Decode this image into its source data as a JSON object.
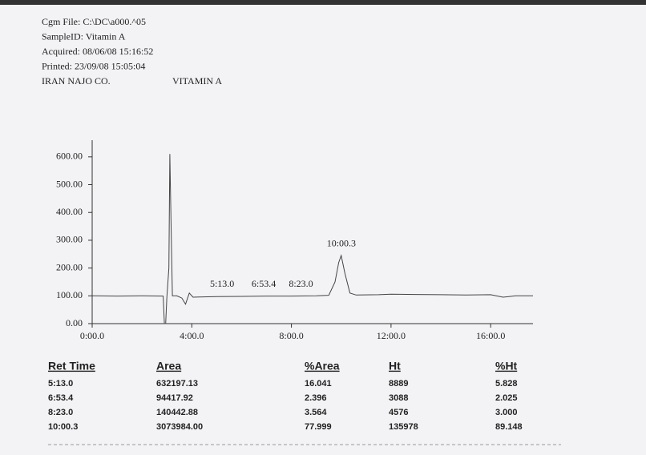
{
  "header": {
    "lines": [
      "Cgm File: C:\\DC\\a000.^05",
      "SampleID: Vitamin A",
      "Acquired: 08/06/08 15:16:52",
      "Printed: 23/09/08 15:05:04",
      "IRAN NAJO CO."
    ],
    "product": "VITAMIN A"
  },
  "chart_data": {
    "type": "line",
    "color": "#444444",
    "x": [
      0,
      1,
      2,
      2.85,
      2.9,
      2.95,
      3.0,
      3.08,
      3.12,
      3.18,
      3.22,
      3.4,
      3.6,
      3.75,
      3.9,
      4.05,
      4.3,
      5,
      6,
      7,
      8,
      9,
      9.5,
      9.75,
      9.9,
      10.0,
      10.15,
      10.35,
      10.6,
      11.5,
      12,
      13,
      14,
      15,
      16,
      16.5,
      17,
      17.7
    ],
    "values": [
      100,
      99,
      100,
      99,
      0,
      0,
      95,
      200,
      610,
      300,
      100,
      100,
      92,
      70,
      110,
      95,
      96,
      97,
      98,
      99,
      99,
      100,
      102,
      150,
      220,
      245,
      180,
      110,
      103,
      104,
      106,
      105,
      104,
      103,
      104,
      95,
      100,
      100
    ],
    "xlim": [
      0,
      17.7
    ],
    "ylim": [
      0,
      660
    ],
    "xticks": [
      {
        "value": 0,
        "label": "0:00.0"
      },
      {
        "value": 4,
        "label": "4:00.0"
      },
      {
        "value": 8,
        "label": "8:00.0"
      },
      {
        "value": 12,
        "label": "12:00.0"
      },
      {
        "value": 16,
        "label": "16:00.0"
      }
    ],
    "yticks": [
      {
        "value": 0,
        "label": "0.00"
      },
      {
        "value": 100,
        "label": "100.00"
      },
      {
        "value": 200,
        "label": "200.00"
      },
      {
        "value": 300,
        "label": "300.00"
      },
      {
        "value": 400,
        "label": "400.00"
      },
      {
        "value": 500,
        "label": "500.00"
      },
      {
        "value": 600,
        "label": "600.00"
      }
    ],
    "annotations": [
      {
        "text": "5:13.0",
        "x": 5.217,
        "y": 100
      },
      {
        "text": "6:53.4",
        "x": 6.89,
        "y": 100
      },
      {
        "text": "8:23.0",
        "x": 8.383,
        "y": 100
      },
      {
        "text": "10:00.3",
        "x": 10.005,
        "y": 245
      }
    ]
  },
  "table": {
    "headers": [
      "Ret Time",
      "Area",
      "%Area",
      "Ht",
      "%Ht"
    ],
    "rows": [
      [
        "5:13.0",
        "632197.13",
        "16.041",
        "8889",
        "5.828"
      ],
      [
        "6:53.4",
        "94417.92",
        "2.396",
        "3088",
        "2.025"
      ],
      [
        "8:23.0",
        "140442.88",
        "3.564",
        "4576",
        "3.000"
      ],
      [
        "10:00.3",
        "3073984.00",
        "77.999",
        "135978",
        "89.148"
      ]
    ]
  }
}
